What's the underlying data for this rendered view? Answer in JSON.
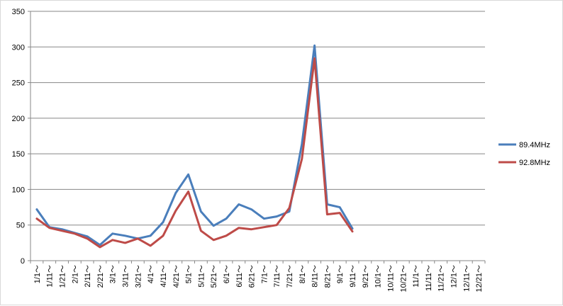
{
  "chart_data": {
    "type": "line",
    "categories": [
      "1/1～",
      "1/11～",
      "1/21～",
      "2/1～",
      "2/11～",
      "2/21～",
      "3/1～",
      "3/11～",
      "3/21～",
      "4/1～",
      "4/11～",
      "4/21～",
      "5/1～",
      "5/11～",
      "5/21～",
      "6/1～",
      "6/11～",
      "6/21～",
      "7/1～",
      "7/11～",
      "7/21～",
      "8/1～",
      "8/11～",
      "8/21～",
      "9/1～",
      "9/11～",
      "9/21～",
      "10/1～",
      "10/11～",
      "10/21～",
      "11/1～",
      "11/11～",
      "11/21～",
      "12/1～",
      "12/11～",
      "12/21～"
    ],
    "series": [
      {
        "name": "89.4MHz",
        "color": "#4a7ebb",
        "values": [
          72,
          47,
          44,
          39,
          34,
          22,
          38,
          35,
          31,
          35,
          54,
          95,
          121,
          69,
          49,
          59,
          79,
          72,
          59,
          62,
          69,
          164,
          302,
          79,
          75,
          45,
          null,
          null,
          null,
          null,
          null,
          null,
          null,
          null,
          null,
          null
        ]
      },
      {
        "name": "92.8MHz",
        "color": "#be4b48",
        "values": [
          59,
          46,
          42,
          38,
          31,
          19,
          29,
          25,
          31,
          21,
          35,
          70,
          97,
          42,
          29,
          35,
          46,
          44,
          47,
          50,
          74,
          143,
          284,
          65,
          67,
          41,
          null,
          null,
          null,
          null,
          null,
          null,
          null,
          null,
          null,
          null
        ]
      }
    ],
    "yticks": [
      "0",
      "50",
      "100",
      "150",
      "200",
      "250",
      "300",
      "350"
    ],
    "ylim": [
      0,
      350
    ],
    "grid": true,
    "legend": "right"
  }
}
